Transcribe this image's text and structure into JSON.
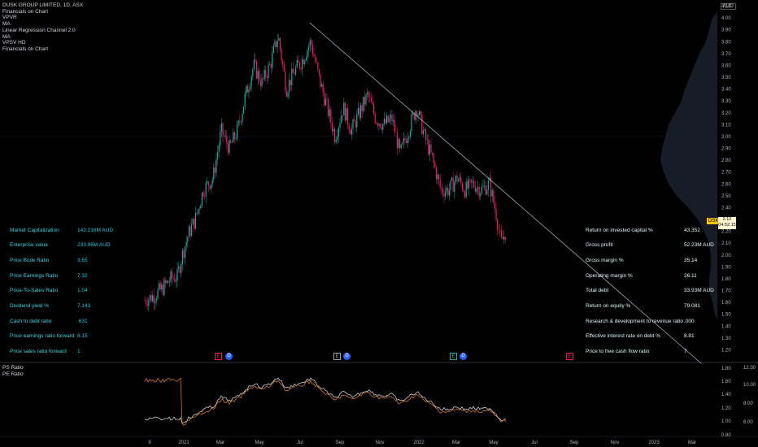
{
  "chart": {
    "symbol_line": "DUSK GROUP LIMITED, 1D, ASX",
    "indicators": [
      "Financials on Chart",
      "VPVR",
      "MA",
      "Linear Regression Channel 2.0",
      "MA",
      "VPSV HD",
      "Financials on Chart"
    ],
    "currency": "AUD",
    "symbol_badge": "DSK",
    "last_price": "2.12",
    "countdown": "04:52:15",
    "price_ticks": [
      "4.10",
      "4.00",
      "3.90",
      "3.80",
      "3.70",
      "3.60",
      "3.50",
      "3.40",
      "3.30",
      "3.20",
      "3.10",
      "3.00",
      "2.90",
      "2.80",
      "2.70",
      "2.60",
      "2.50",
      "2.40",
      "2.30",
      "2.20",
      "2.10",
      "2.00",
      "1.90",
      "1.80",
      "1.70",
      "1.60",
      "1.50",
      "1.40",
      "1.30",
      "1.20"
    ],
    "time_ticks": [
      "9",
      "2021",
      "Mar",
      "May",
      "Jul",
      "Sep",
      "Nov",
      "2022",
      "Mar",
      "May",
      "Jul",
      "Sep",
      "Nov",
      "2023",
      "Mar"
    ],
    "event_markers": [
      "E",
      "D",
      "E",
      "D",
      "E",
      "D",
      "E"
    ],
    "colors": {
      "up": "#26a69a",
      "down": "#e91e63",
      "financial_label": "#4dd0e1",
      "ps_line": "#e8e8e8",
      "pe_line": "#e8863a",
      "trendline": "#b2b5be"
    }
  },
  "financials_left": [
    {
      "label": "Market Capitalization",
      "value": "143.216M AUD"
    },
    {
      "label": "Enterprise value",
      "value": "233.96M AUD"
    },
    {
      "label": "Price Book Ratio",
      "value": "3.65"
    },
    {
      "label": "Price Earnings Ratio",
      "value": "7.32"
    },
    {
      "label": "Price-To-Sales Ratio",
      "value": "1.04"
    },
    {
      "label": "Dividend yield %",
      "value": "7.143"
    },
    {
      "label": "Cash to debt ratio",
      "value": ".631"
    },
    {
      "label": "Price earnings ratio forward",
      "value": "8.15"
    },
    {
      "label": "Price sales ratio forward",
      "value": "1"
    }
  ],
  "financials_right": [
    {
      "label": "Return on invested capital %",
      "value": "43.352"
    },
    {
      "label": "Gross profit",
      "value": "52.23M AUD"
    },
    {
      "label": "Gross margin %",
      "value": "35.14"
    },
    {
      "label": "Operating margin %",
      "value": "26.11"
    },
    {
      "label": "Total debt",
      "value": "33.93M AUD"
    },
    {
      "label": "Return on equity %",
      "value": "79.081"
    },
    {
      "label": "Research & development to revenue ratio",
      "value": ".000"
    },
    {
      "label": "Effective interest rate on debt %",
      "value": "8.81"
    },
    {
      "label": "Price to free cash flow ratio",
      "value": "7"
    }
  ],
  "lower_pane": {
    "labels": [
      "PS Ratio",
      "PE Ratio"
    ],
    "left_ticks": [
      "1.80",
      "1.60",
      "1.40",
      "1.20",
      "1.00",
      "0.80"
    ],
    "right_ticks": [
      "12.00",
      "10.00",
      "8.00",
      "6.00"
    ]
  }
}
